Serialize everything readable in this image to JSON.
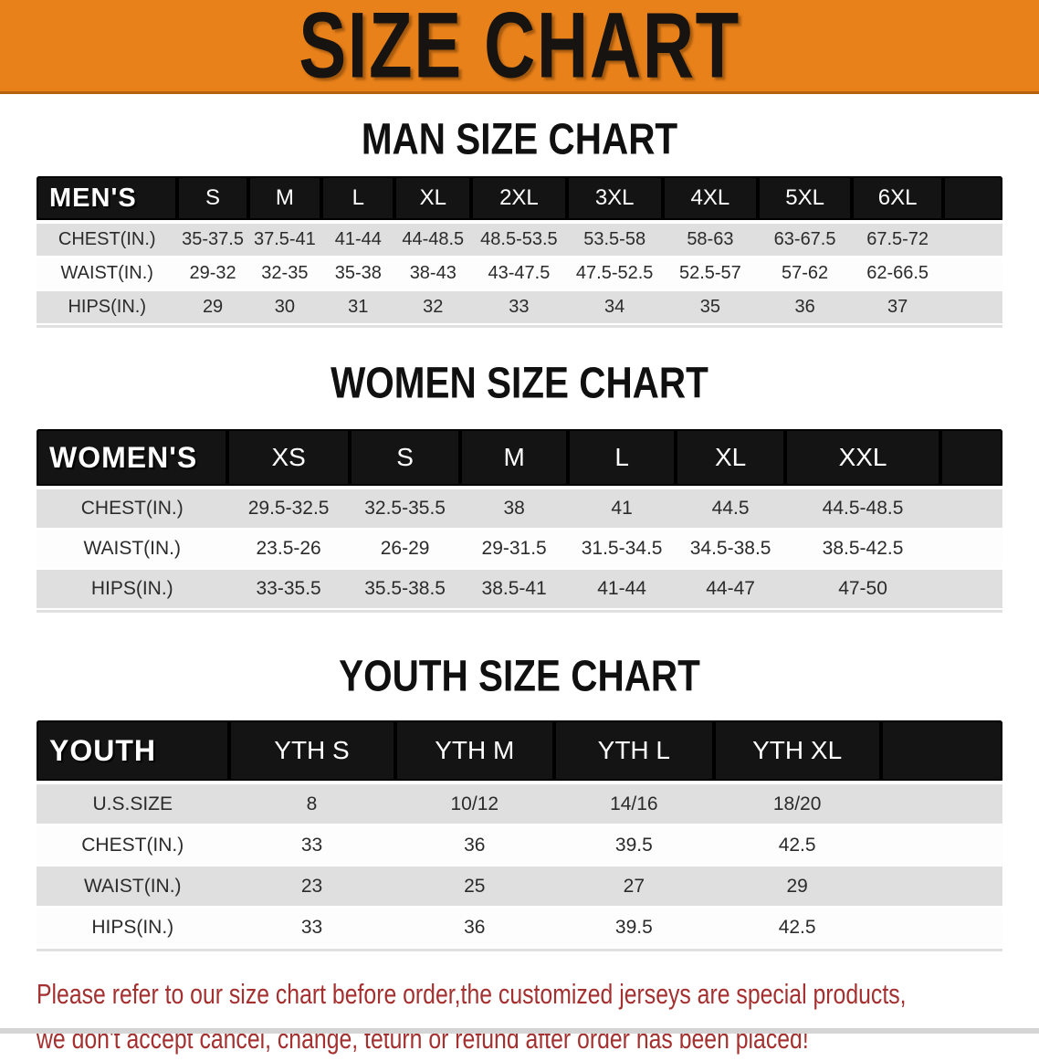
{
  "banner": {
    "title": "SIZE CHART"
  },
  "chart_data": [
    {
      "type": "table",
      "title": "MAN SIZE CHART",
      "columns": [
        "MEN'S",
        "S",
        "M",
        "L",
        "XL",
        "2XL",
        "3XL",
        "4XL",
        "5XL",
        "6XL"
      ],
      "rows": [
        [
          "CHEST(IN.)",
          "35-37.5",
          "37.5-41",
          "41-44",
          "44-48.5",
          "48.5-53.5",
          "53.5-58",
          "58-63",
          "63-67.5",
          "67.5-72"
        ],
        [
          "WAIST(IN.)",
          "29-32",
          "32-35",
          "35-38",
          "38-43",
          "43-47.5",
          "47.5-52.5",
          "52.5-57",
          "57-62",
          "62-66.5"
        ],
        [
          "HIPS(IN.)",
          "29",
          "30",
          "31",
          "32",
          "33",
          "34",
          "35",
          "36",
          "37"
        ]
      ]
    },
    {
      "type": "table",
      "title": "WOMEN SIZE CHART",
      "columns": [
        "WOMEN'S",
        "XS",
        "S",
        "M",
        "L",
        "XL",
        "XXL"
      ],
      "rows": [
        [
          "CHEST(IN.)",
          "29.5-32.5",
          "32.5-35.5",
          "38",
          "41",
          "44.5",
          "44.5-48.5"
        ],
        [
          "WAIST(IN.)",
          "23.5-26",
          "26-29",
          "29-31.5",
          "31.5-34.5",
          "34.5-38.5",
          "38.5-42.5"
        ],
        [
          "HIPS(IN.)",
          "33-35.5",
          "35.5-38.5",
          "38.5-41",
          "41-44",
          "44-47",
          "47-50"
        ]
      ]
    },
    {
      "type": "table",
      "title": "YOUTH SIZE CHART",
      "columns": [
        "YOUTH",
        "YTH S",
        "YTH M",
        "YTH L",
        "YTH XL"
      ],
      "rows": [
        [
          "U.S.SIZE",
          "8",
          "10/12",
          "14/16",
          "18/20"
        ],
        [
          "CHEST(IN.)",
          "33",
          "36",
          "39.5",
          "42.5"
        ],
        [
          "WAIST(IN.)",
          "23",
          "25",
          "27",
          "29"
        ],
        [
          "HIPS(IN.)",
          "33",
          "36",
          "39.5",
          "42.5"
        ]
      ]
    }
  ],
  "disclaimer": {
    "line1": "Please refer to our size chart before order,the customized jerseys are special products,",
    "line2": "we don't accept cancel, change, teturn or refund after order has been placed!"
  },
  "colors": {
    "banner_bg": "#e8811a",
    "banner_edge": "#b5610f",
    "header_bar": "#141414",
    "row_stripe": "#dfdfdf",
    "disclaimer_text": "#a53030",
    "bottom_strip": "#d5d5d5"
  }
}
